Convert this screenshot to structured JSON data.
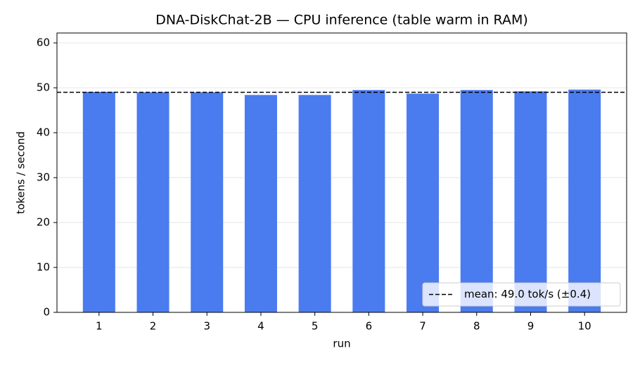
{
  "chart_data": {
    "type": "bar",
    "title": "DNA-DiskChat-2B — CPU inference (table warm in RAM)",
    "xlabel": "run",
    "ylabel": "tokens / second",
    "categories": [
      "1",
      "2",
      "3",
      "4",
      "5",
      "6",
      "7",
      "8",
      "9",
      "10"
    ],
    "values": [
      49.1,
      49.0,
      49.0,
      48.4,
      48.4,
      49.5,
      48.7,
      49.5,
      49.2,
      49.6
    ],
    "color": "#4a7bef",
    "ylim": [
      0,
      62.2
    ],
    "yticks": [
      0,
      10,
      20,
      30,
      40,
      50,
      60
    ],
    "grid": true,
    "reference_line": {
      "value": 49.0,
      "label": "mean: 49.0 tok/s (±0.4)",
      "color": "#000000",
      "style": "dashed"
    },
    "legend": "lower right"
  }
}
